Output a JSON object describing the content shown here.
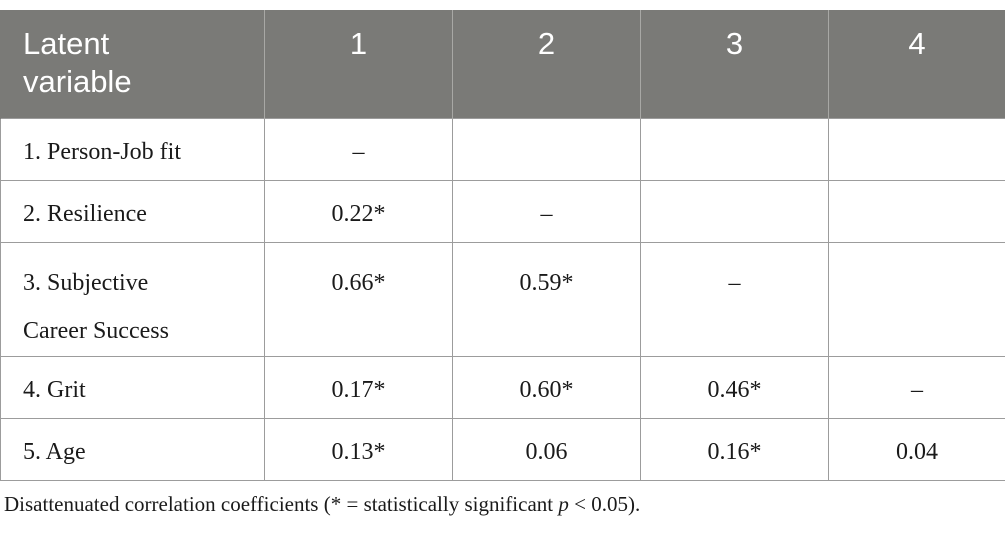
{
  "table": {
    "header": [
      "Latent variable",
      "1",
      "2",
      "3",
      "4"
    ],
    "header_first_lines": [
      "Latent",
      "variable"
    ],
    "rows": [
      {
        "label": "1. Person-Job fit",
        "cells": [
          "–",
          "",
          "",
          ""
        ]
      },
      {
        "label": "2. Resilience",
        "cells": [
          "0.22*",
          "–",
          "",
          ""
        ]
      },
      {
        "label_lines": [
          "3. Subjective",
          "Career Success"
        ],
        "cells": [
          "0.66*",
          "0.59*",
          "–",
          ""
        ]
      },
      {
        "label": "4. Grit",
        "cells": [
          "0.17*",
          "0.60*",
          "0.46*",
          "–"
        ]
      },
      {
        "label": "5. Age",
        "cells": [
          "0.13*",
          "0.06",
          "0.16*",
          "0.04"
        ]
      }
    ]
  },
  "note": {
    "prefix": "Disattenuated correlation coefficients (* = statistically significant ",
    "p": "p",
    "suffix": " < 0.05)."
  },
  "colors": {
    "header_bg": "#7a7a77",
    "header_text": "#ffffff",
    "border": "#9c9c9c"
  }
}
